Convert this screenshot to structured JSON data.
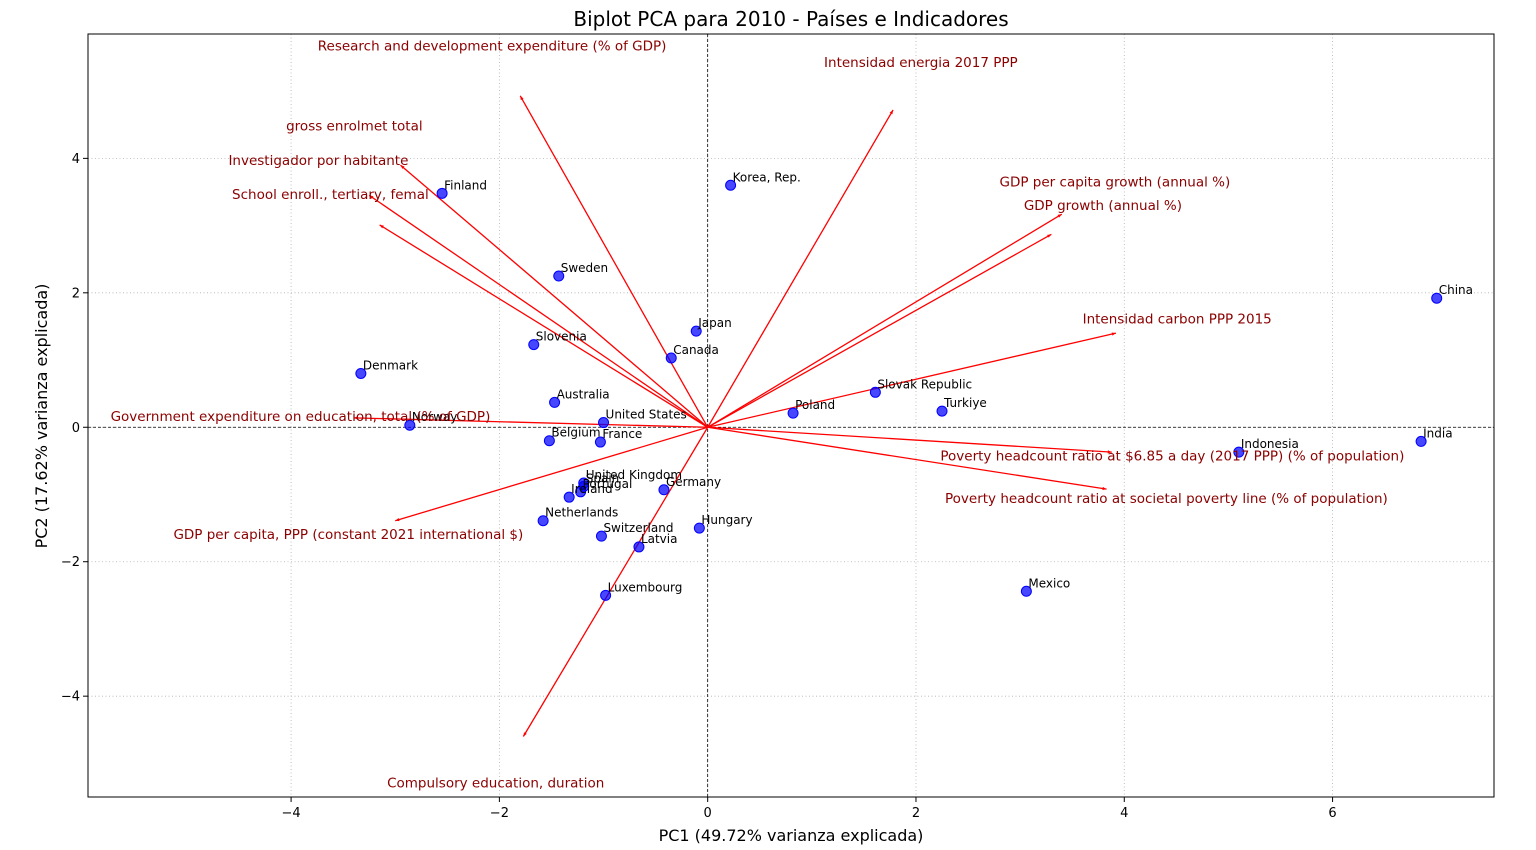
{
  "chart_data": {
    "type": "scatter",
    "title": "Biplot PCA para 2010 - Países e Indicadores",
    "xlabel": "PC1 (49.72% varianza explicada)",
    "ylabel": "PC2 (17.62% varianza explicada)",
    "xlim": [
      -5.95,
      7.55
    ],
    "ylim": [
      -5.5,
      5.85
    ],
    "xticks": [
      -4,
      -2,
      0,
      2,
      4,
      6
    ],
    "yticks": [
      -4,
      -2,
      0,
      2,
      4
    ],
    "grid": true,
    "point_color": "#0000ff",
    "arrow_color": "#ff0000",
    "arrow_label_color": "#8b0000",
    "points": [
      {
        "label": "Finland",
        "x": -2.55,
        "y": 3.48
      },
      {
        "label": "Korea, Rep.",
        "x": 0.22,
        "y": 3.6
      },
      {
        "label": "Sweden",
        "x": -1.43,
        "y": 2.25
      },
      {
        "label": "China",
        "x": 7.0,
        "y": 1.92
      },
      {
        "label": "Japan",
        "x": -0.11,
        "y": 1.43
      },
      {
        "label": "Slovenia",
        "x": -1.67,
        "y": 1.23
      },
      {
        "label": "Canada",
        "x": -0.35,
        "y": 1.03
      },
      {
        "label": "Denmark",
        "x": -3.33,
        "y": 0.8
      },
      {
        "label": "Slovak Republic",
        "x": 1.61,
        "y": 0.52
      },
      {
        "label": "Australia",
        "x": -1.47,
        "y": 0.37
      },
      {
        "label": "Turkiye",
        "x": 2.25,
        "y": 0.24
      },
      {
        "label": "Poland",
        "x": 0.82,
        "y": 0.21
      },
      {
        "label": "United States",
        "x": -1.0,
        "y": 0.07
      },
      {
        "label": "Norway",
        "x": -2.86,
        "y": 0.03
      },
      {
        "label": "Belgium",
        "x": -1.52,
        "y": -0.2
      },
      {
        "label": "France",
        "x": -1.03,
        "y": -0.22
      },
      {
        "label": "India",
        "x": 6.85,
        "y": -0.21
      },
      {
        "label": "Indonesia",
        "x": 5.1,
        "y": -0.37
      },
      {
        "label": "United Kingdom",
        "x": -1.19,
        "y": -0.83
      },
      {
        "label": "Spain",
        "x": -1.19,
        "y": -0.88
      },
      {
        "label": "Portugal",
        "x": -1.22,
        "y": -0.96
      },
      {
        "label": "Germany",
        "x": -0.42,
        "y": -0.93
      },
      {
        "label": "Ireland",
        "x": -1.33,
        "y": -1.04
      },
      {
        "label": "Netherlands",
        "x": -1.58,
        "y": -1.39
      },
      {
        "label": "Hungary",
        "x": -0.08,
        "y": -1.5
      },
      {
        "label": "Switzerland",
        "x": -1.02,
        "y": -1.62
      },
      {
        "label": "Latvia",
        "x": -0.66,
        "y": -1.78
      },
      {
        "label": "Mexico",
        "x": 3.06,
        "y": -2.44
      },
      {
        "label": "Luxembourg",
        "x": -0.98,
        "y": -2.5
      }
    ],
    "loadings": [
      {
        "label": "Research and development expenditure (% of GDP)",
        "x": -1.8,
        "y": 4.93
      },
      {
        "label": "Intensidad energia 2017 PPP",
        "x": 1.78,
        "y": 4.72
      },
      {
        "label": "gross enrolmet total",
        "x": -2.95,
        "y": 3.9
      },
      {
        "label": "Investigador por habitante",
        "x": -3.25,
        "y": 3.45
      },
      {
        "label": "School enroll., tertiary, femal",
        "x": -3.15,
        "y": 3.01
      },
      {
        "label": "GDP per capita growth (annual %)",
        "x": 3.4,
        "y": 3.17
      },
      {
        "label": "GDP growth (annual %)",
        "x": 3.3,
        "y": 2.87
      },
      {
        "label": "Intensidad carbon PPP 2015",
        "x": 3.92,
        "y": 1.4
      },
      {
        "label": "Government expenditure on education, total (% of GDP)",
        "x": -3.4,
        "y": 0.14
      },
      {
        "label": "Poverty headcount ratio at $6.85 a day (2017 PPP) (% of population)",
        "x": 3.88,
        "y": -0.37
      },
      {
        "label": "Poverty headcount ratio at societal poverty line (% of population)",
        "x": 3.83,
        "y": -0.92
      },
      {
        "label": "GDP per capita, PPP (constant 2021 international $)",
        "x": -3.0,
        "y": -1.39
      },
      {
        "label": "Compulsory education, duration",
        "x": -1.77,
        "y": -4.6
      }
    ]
  }
}
